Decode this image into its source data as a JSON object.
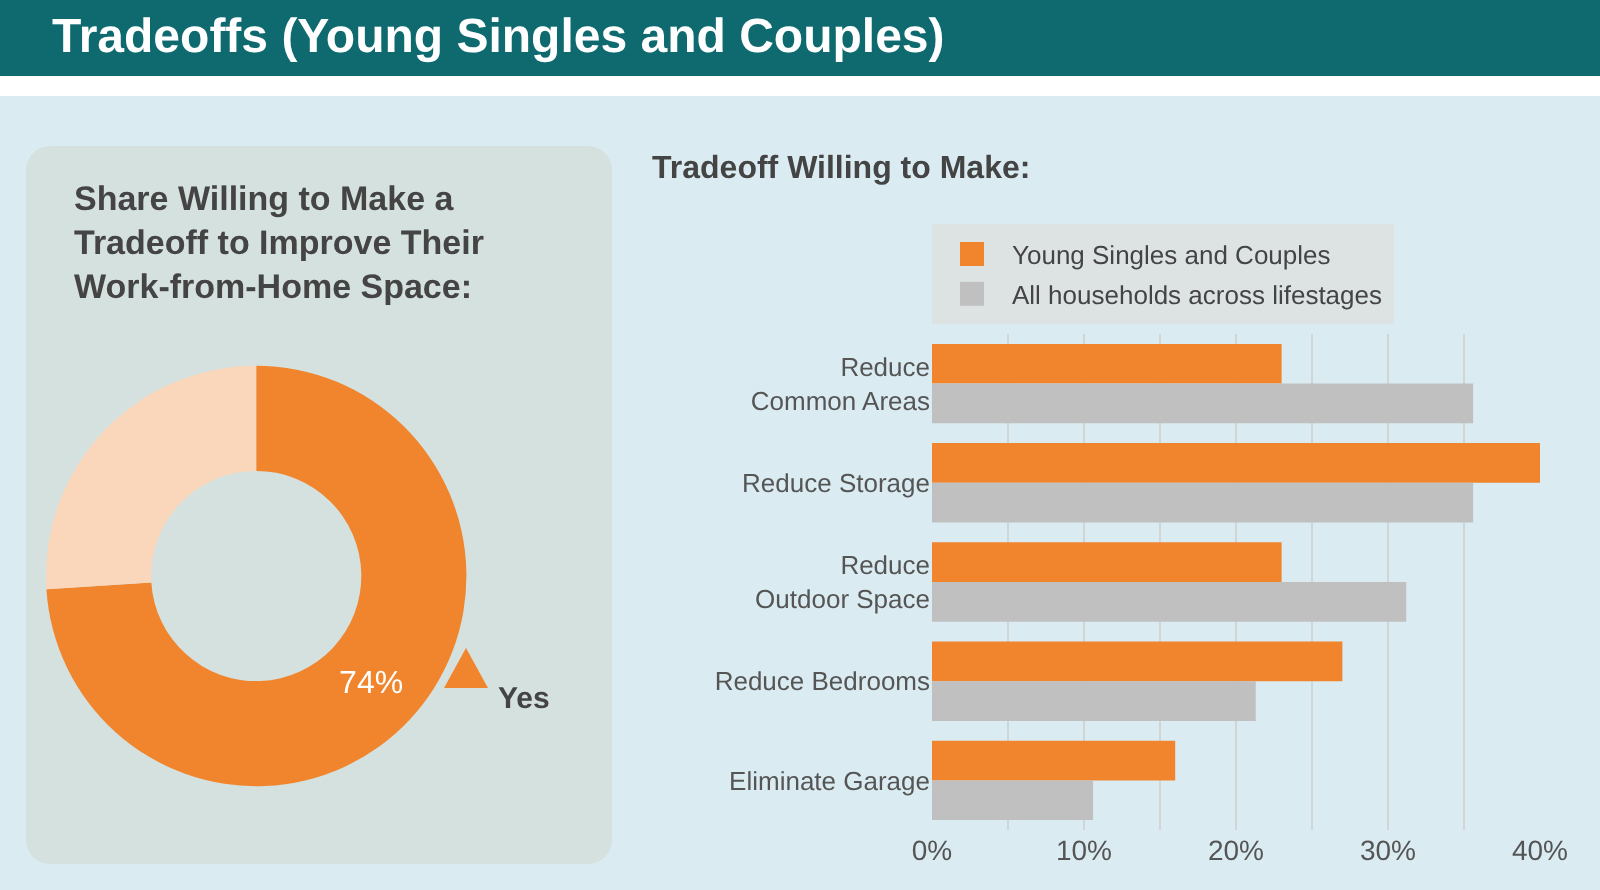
{
  "chart_data": [
    {
      "type": "donut",
      "title": "Share Willing to Make a Tradeoff to Improve Their Work-from-Home Space:",
      "annotations": [
        "Tradeoffs (Young Singles and Couples)"
      ],
      "categories": [
        "Yes",
        null
      ],
      "values": [
        74,
        26
      ],
      "colors": [
        "#f0852d",
        "#fad7bb"
      ],
      "value_labels": [
        "74%",
        null
      ]
    },
    {
      "type": "bar",
      "orientation": "horizontal",
      "title": "Tradeoff Willing to Make:",
      "categories": [
        "Reduce\nCommon Areas",
        "Reduce Storage",
        "Reduce\nOutdoor Space",
        "Reduce Bedrooms",
        "Eliminate Garage"
      ],
      "series": [
        {
          "name": "Young Singles and Couples",
          "color": "#f0852d",
          "values": [
            23,
            40,
            23,
            27,
            16
          ]
        },
        {
          "name": "All households across lifestages",
          "color": "#c0c0c0",
          "values": [
            35.6,
            35.6,
            31.2,
            21.3,
            10.6
          ]
        }
      ],
      "xlim": [
        0,
        40
      ],
      "xticks": [
        {
          "value": 0,
          "label": "0%"
        },
        {
          "value": 5,
          "label": null
        },
        {
          "value": 10,
          "label": "10%"
        },
        {
          "value": 15,
          "label": null
        },
        {
          "value": 20,
          "label": "20%"
        },
        {
          "value": 25,
          "label": null
        },
        {
          "value": 30,
          "label": "30%"
        },
        {
          "value": 35,
          "label": null
        },
        {
          "value": 40,
          "label": "40%"
        }
      ],
      "grid": "x",
      "legend": "top"
    }
  ]
}
